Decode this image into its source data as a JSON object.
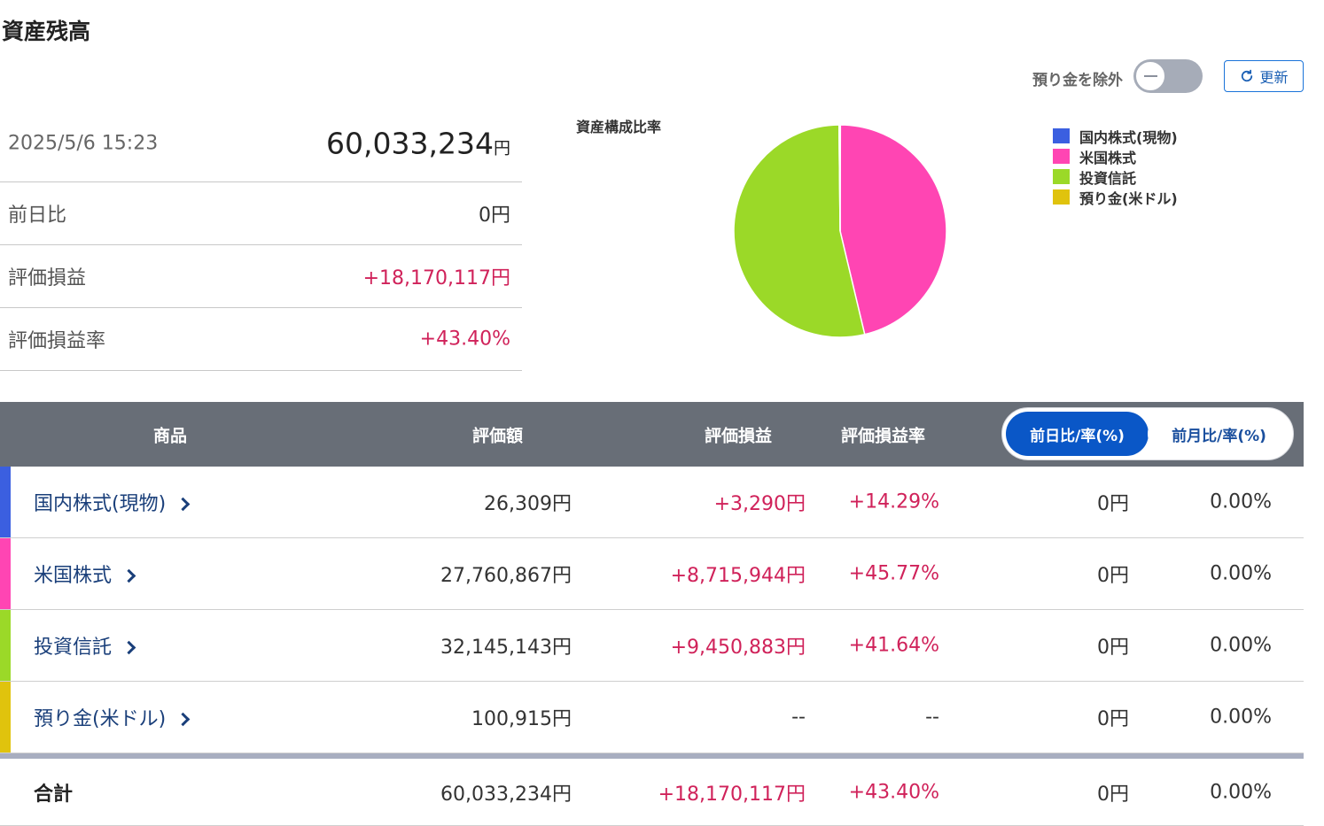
{
  "page_title": "資産残高",
  "controls": {
    "exclude_deposit_label": "預り金を除外",
    "exclude_deposit_on": false,
    "refresh_label": "更新"
  },
  "summary": {
    "datetime": "2025/5/6 15:23",
    "total_amount": "60,033,234",
    "total_unit": "円",
    "rows": [
      {
        "label": "前日比",
        "value": "0円"
      },
      {
        "label": "評価損益",
        "value": "+18,170,117円"
      },
      {
        "label": "評価損益率",
        "value": "+43.40%"
      }
    ]
  },
  "chart_data": {
    "type": "pie",
    "title": "資産構成比率",
    "legend": "top-right",
    "slices": [
      {
        "name": "国内株式(現物)",
        "value": 26309,
        "color": "#3b5fe0"
      },
      {
        "name": "米国株式",
        "value": 27760867,
        "color": "#ff45b3"
      },
      {
        "name": "投資信託",
        "value": 32145143,
        "color": "#9bd928"
      },
      {
        "name": "預り金(米ドル)",
        "value": 100915,
        "color": "#e0c30d"
      }
    ]
  },
  "table": {
    "headers": {
      "product": "商品",
      "valuation": "評価額",
      "gain": "評価損益",
      "gain_rate": "評価損益率"
    },
    "toggle": {
      "active": "前日比/率(%)",
      "inactive": "前月比/率(%)"
    },
    "rows": [
      {
        "name": "国内株式(現物)",
        "color": "#3b5fe0",
        "valuation": "26,309円",
        "gain": "+3,290円",
        "gain_rate": "+14.29%",
        "day_change": "0円",
        "day_rate": "0.00%"
      },
      {
        "name": "米国株式",
        "color": "#ff45b3",
        "valuation": "27,760,867円",
        "gain": "+8,715,944円",
        "gain_rate": "+45.77%",
        "day_change": "0円",
        "day_rate": "0.00%"
      },
      {
        "name": "投資信託",
        "color": "#9bd928",
        "valuation": "32,145,143円",
        "gain": "+9,450,883円",
        "gain_rate": "+41.64%",
        "day_change": "0円",
        "day_rate": "0.00%"
      },
      {
        "name": "預り金(米ドル)",
        "color": "#e0c30d",
        "valuation": "100,915円",
        "gain": "--",
        "gain_rate": "--",
        "day_change": "0円",
        "day_rate": "0.00%"
      }
    ],
    "total": {
      "label": "合計",
      "valuation": "60,033,234円",
      "gain": "+18,170,117円",
      "gain_rate": "+43.40%",
      "day_change": "0円",
      "day_rate": "0.00%"
    }
  },
  "colors": {
    "accent_blue": "#0a57c7",
    "positive_red": "#d0225a",
    "header_gray": "#686e77"
  }
}
